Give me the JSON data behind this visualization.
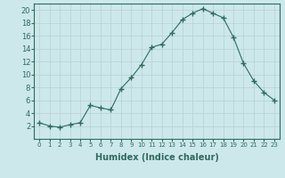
{
  "x": [
    0,
    1,
    2,
    3,
    4,
    5,
    6,
    7,
    8,
    9,
    10,
    11,
    12,
    13,
    14,
    15,
    16,
    17,
    18,
    19,
    20,
    21,
    22,
    23
  ],
  "y": [
    2.5,
    2.0,
    1.8,
    2.2,
    2.5,
    5.2,
    4.8,
    4.5,
    7.8,
    9.5,
    11.5,
    14.2,
    14.7,
    16.5,
    18.5,
    19.5,
    20.2,
    19.5,
    18.8,
    15.8,
    11.7,
    9.0,
    7.2,
    6.0
  ],
  "line_color": "#2e6b5e",
  "marker": "+",
  "marker_size": 4,
  "bg_color": "#cce8ea",
  "grid_color": "#b8d0d2",
  "xlabel": "Humidex (Indice chaleur)",
  "ylim": [
    0,
    21
  ],
  "xlim": [
    -0.5,
    23.5
  ],
  "yticks": [
    2,
    4,
    6,
    8,
    10,
    12,
    14,
    16,
    18,
    20
  ],
  "xticks": [
    0,
    1,
    2,
    3,
    4,
    5,
    6,
    7,
    8,
    9,
    10,
    11,
    12,
    13,
    14,
    15,
    16,
    17,
    18,
    19,
    20,
    21,
    22,
    23
  ]
}
